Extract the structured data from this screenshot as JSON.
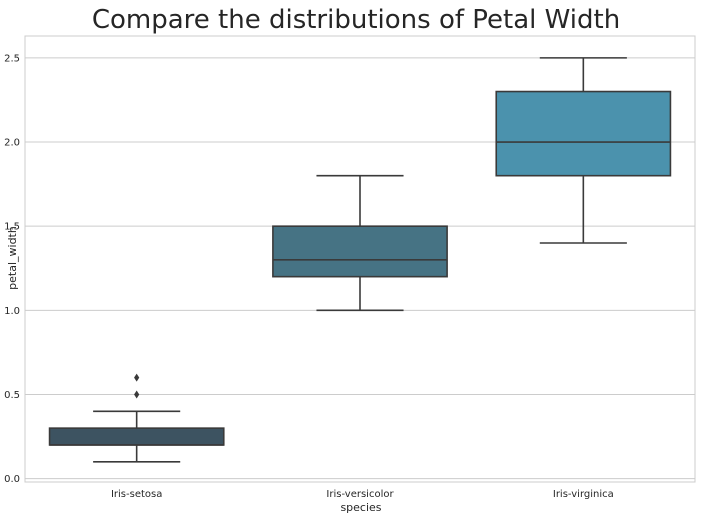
{
  "chart_data": {
    "type": "box",
    "title": "Compare the distributions of Petal Width",
    "xlabel": "species",
    "ylabel": "petal_width",
    "ylim": [
      -0.02,
      2.63
    ],
    "yticks": [
      "0.0",
      "0.5",
      "1.0",
      "1.5",
      "2.0",
      "2.5"
    ],
    "grid": "horizontal",
    "categories": [
      "Iris-setosa",
      "Iris-versicolor",
      "Iris-virginica"
    ],
    "boxes": [
      {
        "category": "Iris-setosa",
        "whisker_low": 0.1,
        "q1": 0.2,
        "median": 0.2,
        "q3": 0.3,
        "whisker_high": 0.4,
        "outliers": [
          0.5,
          0.6
        ],
        "color": "#3d5361"
      },
      {
        "category": "Iris-versicolor",
        "whisker_low": 1.0,
        "q1": 1.2,
        "median": 1.3,
        "q3": 1.5,
        "whisker_high": 1.8,
        "outliers": [],
        "color": "#467384"
      },
      {
        "category": "Iris-virginica",
        "whisker_low": 1.4,
        "q1": 1.8,
        "median": 2.0,
        "q3": 2.3,
        "whisker_high": 2.5,
        "outliers": [],
        "color": "#4b92ad"
      }
    ]
  }
}
